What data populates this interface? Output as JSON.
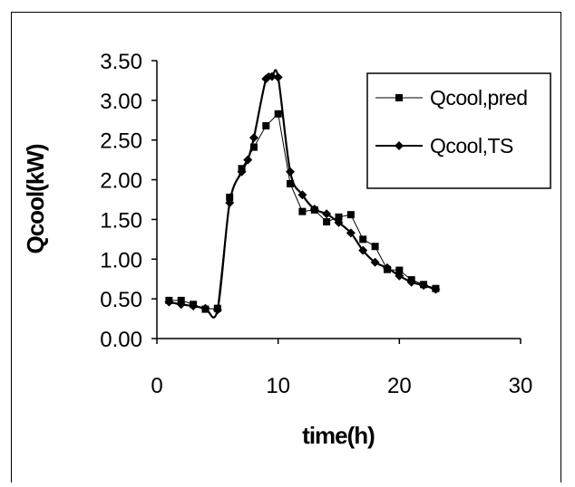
{
  "chart_data": {
    "type": "line",
    "title": "",
    "xlabel": "time(h)",
    "ylabel": "Qcool(kW)",
    "xlim": [
      0,
      30
    ],
    "ylim": [
      0,
      3.5
    ],
    "x_ticks": [
      0,
      10,
      20,
      30
    ],
    "x_tick_labels": [
      "0",
      "10",
      "20",
      "30"
    ],
    "y_ticks": [
      0,
      0.5,
      1.0,
      1.5,
      2.0,
      2.5,
      3.0,
      3.5
    ],
    "y_tick_labels": [
      "0.00",
      "0.50",
      "1.00",
      "1.50",
      "2.00",
      "2.50",
      "3.00",
      "3.50"
    ],
    "grid": false,
    "legend_position": "top-right",
    "series": [
      {
        "name": "Qcool,pred",
        "marker": "square",
        "line_style": "thin",
        "color": "#000000",
        "x": [
          1,
          2,
          3,
          4,
          5,
          6,
          7,
          8,
          9,
          10,
          11,
          12,
          13,
          14,
          15,
          16,
          17,
          18,
          19,
          20,
          21,
          22,
          23
        ],
        "y": [
          0.48,
          0.48,
          0.43,
          0.37,
          0.38,
          1.78,
          2.14,
          2.41,
          2.68,
          2.83,
          1.95,
          1.6,
          1.62,
          1.47,
          1.53,
          1.56,
          1.25,
          1.16,
          0.87,
          0.86,
          0.74,
          0.68,
          0.63
        ]
      },
      {
        "name": "Qcool,TS",
        "marker": "diamond",
        "line_style": "thick",
        "color": "#000000",
        "x": [
          1,
          2,
          3,
          4,
          5,
          6,
          7,
          7.5,
          8,
          9,
          9.5,
          10,
          11,
          12,
          13,
          14,
          15,
          16,
          17,
          18,
          19,
          20,
          21,
          22,
          23
        ],
        "y": [
          0.46,
          0.43,
          0.41,
          0.38,
          0.36,
          1.71,
          2.1,
          2.25,
          2.53,
          3.27,
          3.3,
          3.29,
          2.1,
          1.81,
          1.63,
          1.57,
          1.46,
          1.33,
          1.11,
          0.96,
          0.89,
          0.79,
          0.71,
          0.67,
          0.62
        ]
      }
    ]
  }
}
